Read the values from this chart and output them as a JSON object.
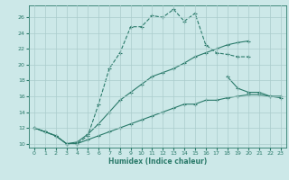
{
  "xlabel": "Humidex (Indice chaleur)",
  "background_color": "#cce8e8",
  "grid_color": "#aacccc",
  "line_color": "#2a7a6a",
  "xlim": [
    -0.5,
    23.5
  ],
  "ylim": [
    9.5,
    27.5
  ],
  "yticks": [
    10,
    12,
    14,
    16,
    18,
    20,
    22,
    24,
    26
  ],
  "xticks": [
    0,
    1,
    2,
    3,
    4,
    5,
    6,
    7,
    8,
    9,
    10,
    11,
    12,
    13,
    14,
    15,
    16,
    17,
    18,
    19,
    20,
    21,
    22,
    23
  ],
  "line1_x": [
    0,
    1,
    2,
    3,
    4,
    5,
    6,
    7,
    8,
    9,
    10,
    11,
    12,
    13,
    14,
    15,
    16,
    17,
    18,
    19,
    20
  ],
  "line1_y": [
    12,
    11.5,
    11,
    10,
    10,
    11,
    15,
    19.5,
    21.5,
    24.8,
    24.8,
    26.2,
    26.0,
    27.0,
    25.5,
    26.5,
    22.5,
    21.5,
    21.3,
    21.0,
    21.0
  ],
  "line2_x": [
    18,
    19,
    20,
    21,
    22,
    23
  ],
  "line2_y": [
    18.5,
    17.0,
    16.5,
    16.5,
    16.0,
    16.0
  ],
  "line3_x": [
    0,
    1,
    2,
    3,
    4,
    5,
    6,
    7,
    8,
    9,
    10,
    11,
    12,
    13,
    14,
    15,
    16,
    17,
    18,
    19,
    20,
    21,
    22,
    23
  ],
  "line3_y": [
    12,
    11.5,
    11,
    10,
    10.2,
    11.2,
    12.5,
    14.0,
    15.5,
    16.5,
    17.5,
    18.5,
    19.0,
    19.5,
    20.2,
    21.0,
    21.5,
    22.0,
    22.5,
    22.8,
    23.0,
    null,
    null,
    null
  ],
  "line4_x": [
    0,
    1,
    2,
    3,
    4,
    5,
    6,
    7,
    8,
    9,
    10,
    11,
    12,
    13,
    14,
    15,
    16,
    17,
    18,
    19,
    20,
    21,
    22,
    23
  ],
  "line4_y": [
    12,
    11.5,
    11,
    10,
    10,
    10.5,
    11.0,
    11.5,
    12.0,
    12.5,
    13.0,
    13.5,
    14.0,
    14.5,
    15.0,
    15.0,
    15.5,
    15.5,
    15.8,
    16.0,
    16.2,
    16.2,
    16.0,
    15.8
  ]
}
